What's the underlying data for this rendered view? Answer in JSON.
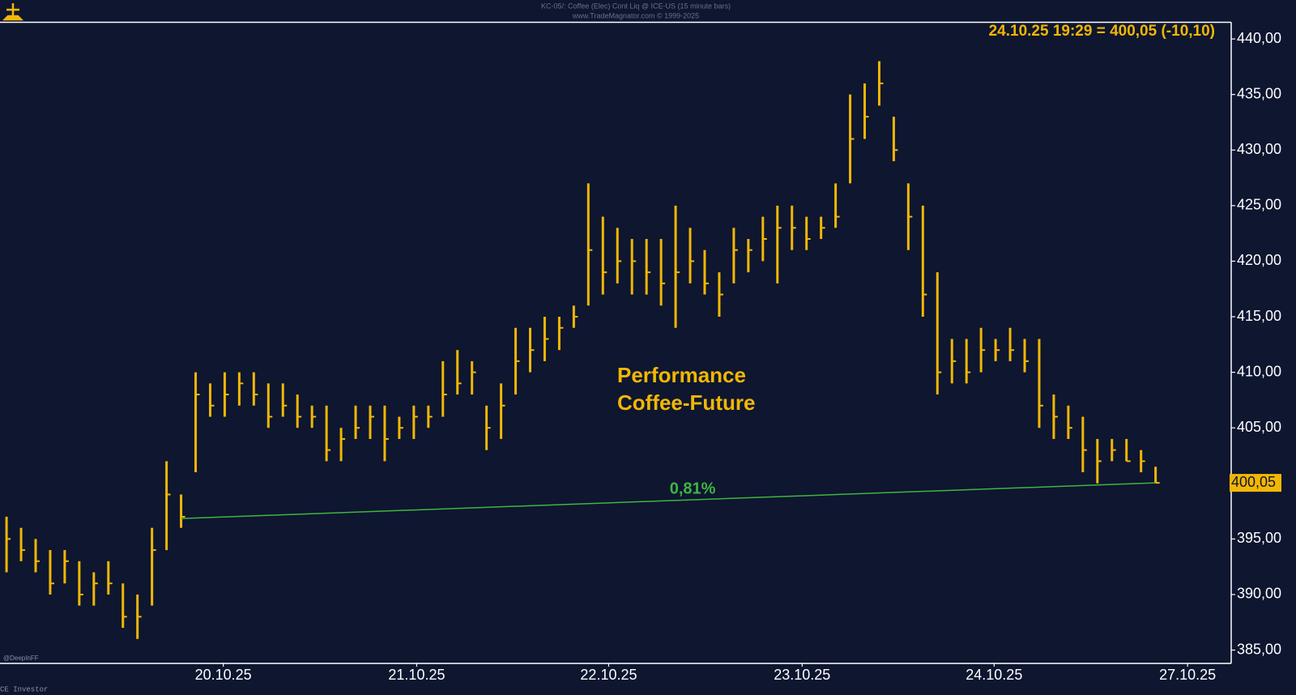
{
  "chart_data": {
    "type": "hlc",
    "header": [
      "KC-05/: Coffee (Elec) Cont Liq @ ICE-US (15 minute bars)",
      "www.TradeMagnator.com © 1999-2025"
    ],
    "last_info": "24.10.25 19:29 = 400,05 (-10,10)",
    "last_marker_label": "400,05",
    "annotation": [
      "Performance",
      "Coffee-Future"
    ],
    "credits": [
      "@DeepInFF",
      "CE Investor"
    ],
    "color": "#f2b705",
    "x": [
      0,
      1,
      2,
      3,
      4,
      5,
      6,
      7,
      8,
      9,
      10,
      11,
      12,
      13,
      14,
      15,
      16,
      17,
      18,
      19,
      20,
      21,
      22,
      23,
      24,
      25,
      26,
      27,
      28,
      29,
      30,
      31,
      32,
      33,
      34,
      35,
      36,
      37,
      38,
      39,
      40,
      41,
      42,
      43,
      44,
      45,
      46,
      47,
      48,
      49,
      50,
      51,
      52,
      53,
      54,
      55,
      56,
      57,
      58,
      59,
      60,
      61,
      62,
      63,
      64,
      65,
      66,
      67,
      68,
      69,
      70,
      71,
      72,
      73,
      74,
      75,
      76,
      77,
      78,
      79
    ],
    "low": [
      392,
      393,
      392,
      390,
      391,
      389,
      389,
      390,
      387,
      386,
      389,
      394,
      396,
      401,
      406,
      406,
      407,
      407,
      405,
      406,
      405,
      405,
      402,
      402,
      404,
      404,
      402,
      404,
      404,
      405,
      406,
      408,
      408,
      403,
      404,
      408,
      410,
      411,
      412,
      414,
      416,
      417,
      418,
      417,
      417,
      416,
      414,
      418,
      417,
      415,
      418,
      419,
      420,
      418,
      421,
      421,
      422,
      423,
      427,
      431,
      434,
      429,
      421,
      415,
      408,
      409,
      409,
      410,
      411,
      411,
      410,
      405,
      404,
      404,
      401,
      400,
      402,
      402,
      401,
      400.05
    ],
    "high": [
      397,
      396,
      395,
      394,
      394,
      393,
      392,
      393,
      391,
      390,
      396,
      402,
      399,
      410,
      409,
      410,
      410,
      410,
      409,
      409,
      408,
      407,
      407,
      405,
      407,
      407,
      407,
      406,
      407,
      407,
      411,
      412,
      411,
      407,
      409,
      414,
      414,
      415,
      415,
      416,
      427,
      424,
      423,
      422,
      422,
      422,
      425,
      423,
      421,
      419,
      423,
      422,
      424,
      425,
      425,
      424,
      424,
      427,
      435,
      436,
      438,
      433,
      427,
      425,
      419,
      413,
      413,
      414,
      413,
      414,
      413,
      413,
      408,
      407,
      406,
      404,
      404,
      404,
      403,
      401.5
    ],
    "close": [
      395,
      394,
      393,
      391,
      393,
      390,
      391,
      391,
      388,
      388,
      394,
      399,
      397,
      408,
      407,
      408,
      409,
      408,
      406,
      407,
      406,
      406,
      403,
      404,
      405,
      406,
      404,
      405,
      406,
      406,
      408,
      409,
      410,
      405,
      407,
      411,
      412,
      413,
      414,
      415,
      421,
      419,
      420,
      420,
      419,
      418,
      419,
      420,
      418,
      417,
      421,
      421,
      422,
      423,
      423,
      422,
      423,
      424,
      431,
      433,
      436,
      430,
      424,
      417,
      410,
      411,
      410,
      412,
      412,
      412,
      411,
      407,
      406,
      405,
      403,
      402,
      403,
      402,
      402,
      400.05
    ],
    "trendline": {
      "label": "0,81%",
      "color": "#3fb53f",
      "x": [
        12,
        79
      ],
      "values": [
        396.84,
        400.05
      ]
    },
    "xlim": [
      -0.45,
      84.2
    ],
    "xticks": [
      {
        "value": 14.9,
        "label": "20.10.25"
      },
      {
        "value": 28.2,
        "label": "21.10.25"
      },
      {
        "value": 41.4,
        "label": "22.10.25"
      },
      {
        "value": 54.7,
        "label": "23.10.25"
      },
      {
        "value": 67.9,
        "label": "24.10.25"
      },
      {
        "value": 81.2,
        "label": "27.10.25"
      }
    ],
    "ylim": [
      383.8,
      441.5
    ],
    "yticks": [
      {
        "value": 385,
        "label": "385,00"
      },
      {
        "value": 390,
        "label": "390,00"
      },
      {
        "value": 395,
        "label": "395,00"
      },
      {
        "value": 400,
        "label": "400,00"
      },
      {
        "value": 405,
        "label": "405,00"
      },
      {
        "value": 410,
        "label": "410,00"
      },
      {
        "value": 415,
        "label": "415,00"
      },
      {
        "value": 420,
        "label": "420,00"
      },
      {
        "value": 425,
        "label": "425,00"
      },
      {
        "value": 430,
        "label": "430,00"
      },
      {
        "value": 435,
        "label": "435,00"
      },
      {
        "value": 440,
        "label": "440,00"
      }
    ]
  }
}
